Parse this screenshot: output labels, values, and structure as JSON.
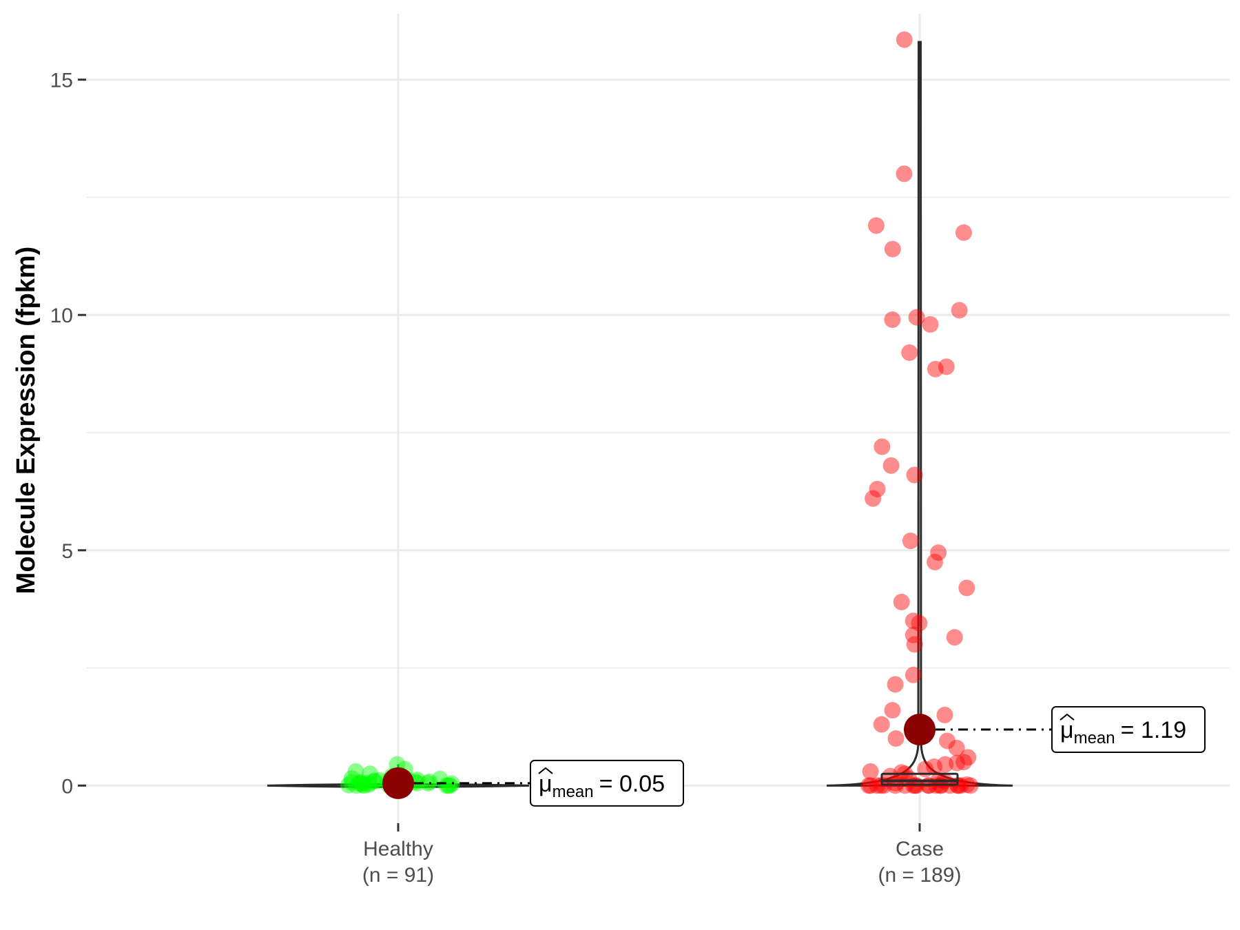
{
  "chart_data": {
    "type": "violin-box-scatter",
    "title": "",
    "ylabel": "Molecule Expression (fpkm)",
    "xlabel": "",
    "ylim": [
      -0.8,
      16.4
    ],
    "yticks": [
      0,
      5,
      10,
      15
    ],
    "grid": true,
    "legend": "none",
    "groups": [
      {
        "key": "healthy",
        "label": "Healthy",
        "n_label": "(n = 91)",
        "color": "#00ff00",
        "mean": 0.05,
        "mean_symbol": "μ",
        "mean_subscript": "mean",
        "mean_text": "= 0.05",
        "box": {
          "q1": 0.0,
          "median": 0.02,
          "q3": 0.08,
          "min": 0.0,
          "max": 0.45
        },
        "points": [
          0.45,
          0.35,
          0.3,
          0.25,
          0.2,
          0.18,
          0.15,
          0.14,
          0.12,
          0.1,
          0.1,
          0.08,
          0.08,
          0.07,
          0.06,
          0.05,
          0.05,
          0.04,
          0.03,
          0.02,
          0.02,
          0.01,
          0.0,
          0.0,
          0.0,
          0.0,
          0.0,
          0.0,
          0.0,
          0.0,
          0.12,
          0.09,
          0.06,
          0.04,
          0.03,
          0.02,
          0.01,
          0.11,
          0.07,
          0.05
        ]
      },
      {
        "key": "case",
        "label": "Case",
        "n_label": "(n = 189)",
        "color": "#ff0000",
        "mean": 1.19,
        "mean_symbol": "μ",
        "mean_subscript": "mean",
        "mean_text": "= 1.19",
        "box": {
          "q1": 0.02,
          "median": 0.1,
          "q3": 0.25,
          "min": 0.0,
          "max": 15.8
        },
        "points": [
          15.85,
          13.0,
          11.9,
          11.75,
          11.4,
          10.1,
          9.95,
          9.9,
          9.8,
          9.2,
          8.9,
          8.85,
          7.2,
          6.8,
          6.6,
          6.3,
          6.1,
          5.2,
          4.95,
          4.75,
          4.2,
          3.9,
          3.5,
          3.45,
          3.2,
          3.15,
          3.0,
          2.35,
          2.15,
          1.6,
          1.5,
          1.3,
          1.0,
          0.95,
          0.8,
          0.6,
          0.5,
          0.48,
          0.45,
          0.4,
          0.35,
          0.3,
          0.28,
          0.25,
          0.2,
          0.15,
          0.12,
          0.1,
          0.05,
          0.02,
          0.0,
          0.0,
          0.0,
          0.0,
          0.0,
          0.0,
          0.0,
          0.0,
          0.0,
          0.0,
          0.0,
          0.0,
          0.0,
          0.0,
          0.0,
          0.0,
          0.0,
          0.0,
          0.0,
          0.0
        ]
      }
    ]
  }
}
